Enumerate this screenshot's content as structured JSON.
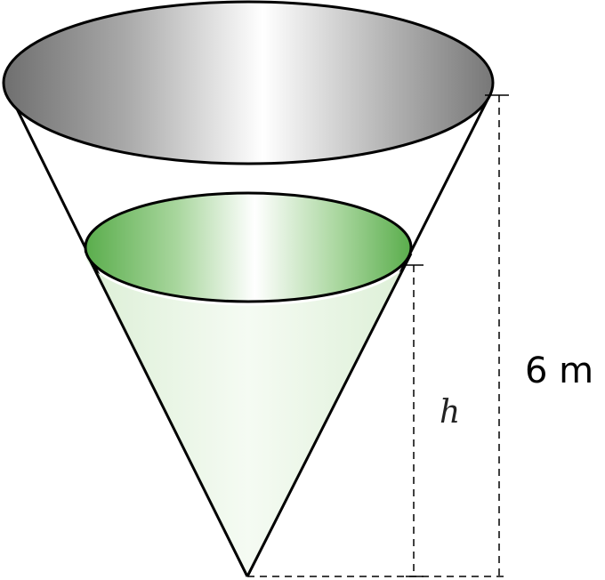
{
  "labels": {
    "water_height": "h",
    "cone_height": "6 m"
  },
  "colors": {
    "outline": "#000000",
    "water_fill": "#e6f3e1",
    "water_surface_dark": "#5aad4c",
    "rim_dark": "#777777",
    "rim_light": "#ffffff"
  }
}
